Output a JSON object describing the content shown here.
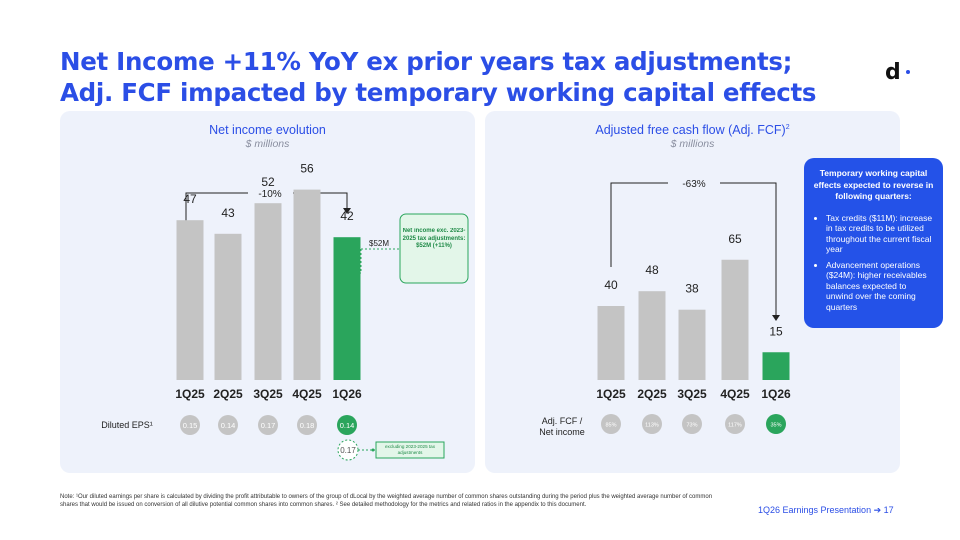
{
  "title": "Net Income +11% YoY ex prior years tax adjustments; Adj. FCF impacted by temporary working capital effects",
  "logo": "d",
  "colors": {
    "accent": "#2b4ee6",
    "bar_gray": "#c4c4c4",
    "bar_green": "#2aa55c",
    "callout_blue": "#2452e8"
  },
  "left_panel": {
    "title": "Net income evolution",
    "subtitle": "$ millions",
    "bracket_label": "-10%",
    "adj_value_label": "$52M",
    "adj_box_text": "Net income exc. 2023-2025 tax adjustments: $52M (+11%)",
    "eps_label": "Diluted EPS¹",
    "eps_values": [
      "0.15",
      "0.14",
      "0.17",
      "0.18",
      "0.14"
    ],
    "eps_adjusted": "0.17",
    "eps_adjusted_note": "excluding 2023-2025 tax adjustments"
  },
  "right_panel": {
    "title": "Adjusted free cash flow (Adj. FCF)",
    "title_sup": "2",
    "subtitle": "$ millions",
    "bracket_label": "-63%",
    "ratio_label_line1": "Adj. FCF /",
    "ratio_label_line2": "Net income",
    "ratio_values": [
      "85%",
      "113%",
      "73%",
      "117%",
      "35%"
    ]
  },
  "callout": {
    "heading": "Temporary working capital effects expected to reverse in following quarters:",
    "bullets": [
      "Tax credits ($11M): increase in tax credits to be utilized throughout the current fiscal year",
      "Advancement operations ($24M): higher receivables balances expected to unwind over the coming quarters"
    ]
  },
  "chart_data": [
    {
      "type": "bar",
      "title": "Net income evolution",
      "subtitle": "$ millions",
      "categories": [
        "1Q25",
        "2Q25",
        "3Q25",
        "4Q25",
        "1Q26"
      ],
      "values": [
        47,
        43,
        52,
        56,
        42
      ],
      "adjusted_1Q26": 52,
      "ylim": [
        0,
        70
      ]
    },
    {
      "type": "bar",
      "title": "Adjusted free cash flow (Adj. FCF)",
      "subtitle": "$ millions",
      "categories": [
        "1Q25",
        "2Q25",
        "3Q25",
        "4Q25",
        "1Q26"
      ],
      "values": [
        40,
        48,
        38,
        65,
        15
      ],
      "ylim": [
        0,
        90
      ]
    }
  ],
  "note": "Note: ¹Our diluted earnings per share is calculated by dividing the profit attributable to owners of the group of dLocal by the weighted average number of common shares outstanding during the period plus the weighted average number of common shares that would be issued on conversion of all dilutive potential common shares into common shares. ² See detailed methodology for the metrics and related ratios in the appendix to this document.",
  "footer": "1Q26 Earnings Presentation ➔  17"
}
